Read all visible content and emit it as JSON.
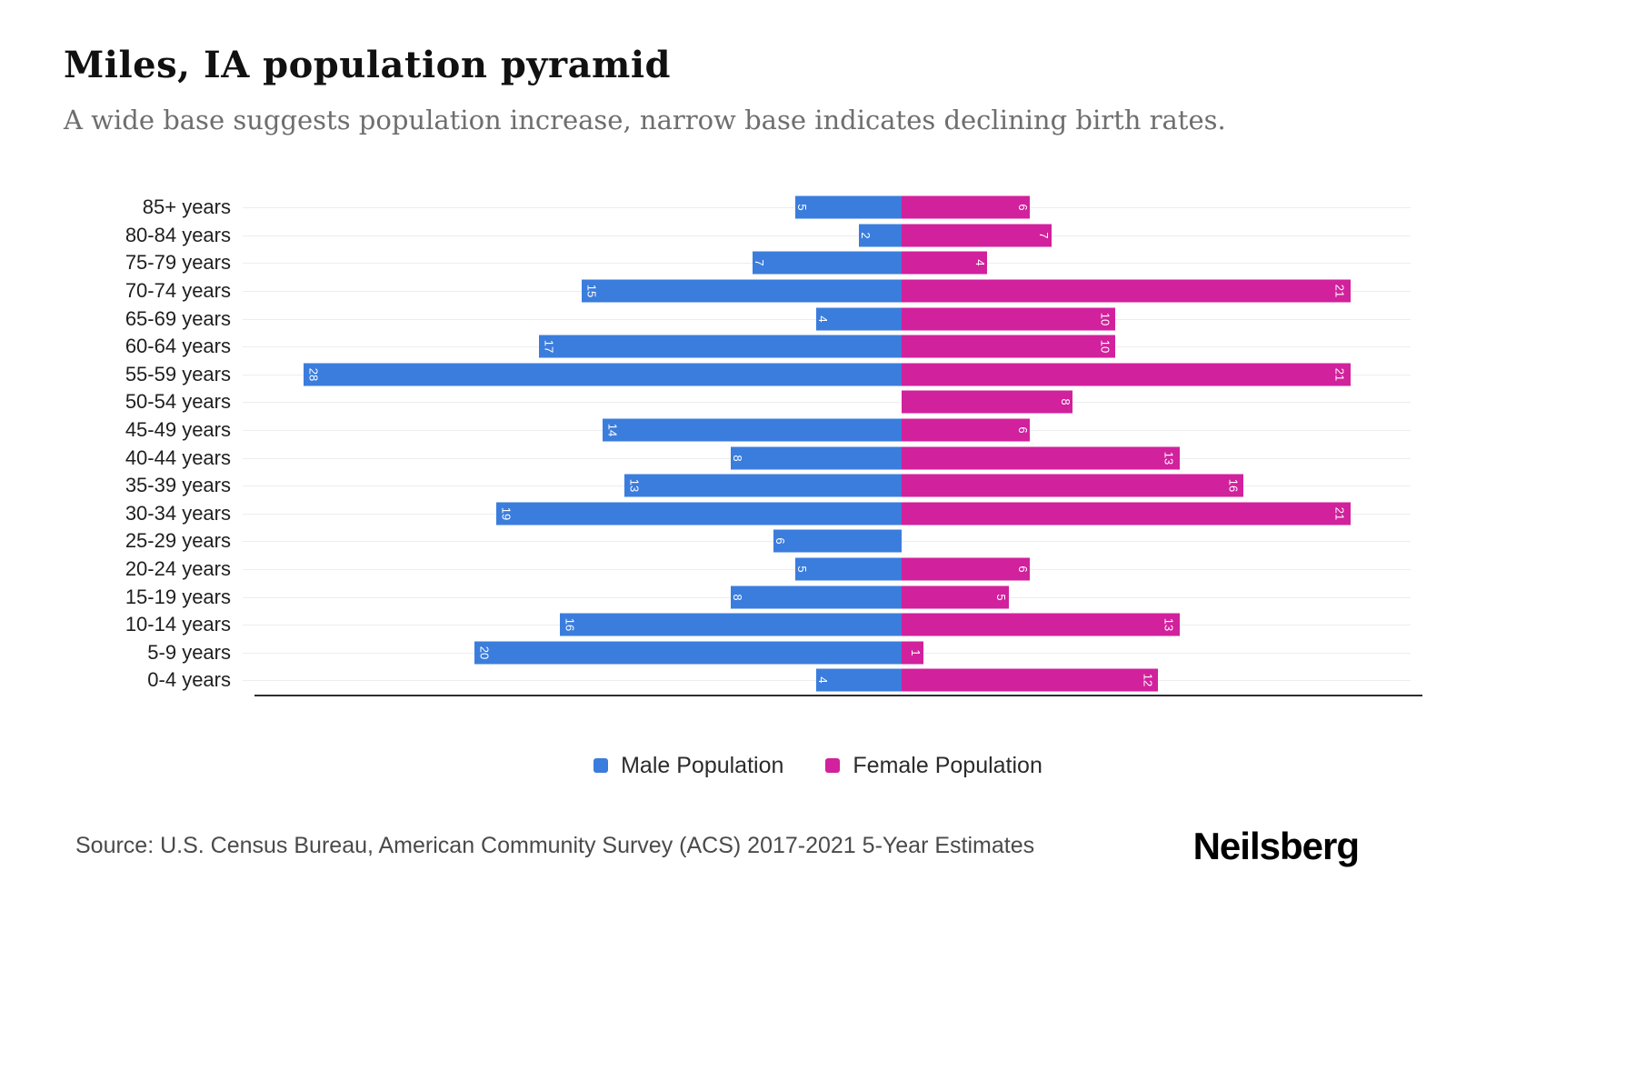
{
  "header": {
    "title": "Miles, IA population pyramid",
    "subtitle": "A wide base suggests population increase, narrow base indicates declining birth rates."
  },
  "chart_data": {
    "type": "bar",
    "variant": "population-pyramid",
    "categories": [
      "85+ years",
      "80-84 years",
      "75-79 years",
      "70-74 years",
      "65-69 years",
      "60-64 years",
      "55-59 years",
      "50-54 years",
      "45-49 years",
      "40-44 years",
      "35-39 years",
      "30-34 years",
      "25-29 years",
      "20-24 years",
      "15-19 years",
      "10-14 years",
      "5-9 years",
      "0-4 years"
    ],
    "series": [
      {
        "name": "Male Population",
        "color": "#3b7ddd",
        "direction": "left",
        "values": [
          5,
          2,
          7,
          15,
          4,
          17,
          28,
          0,
          14,
          8,
          13,
          19,
          6,
          5,
          8,
          16,
          20,
          4
        ]
      },
      {
        "name": "Female Population",
        "color": "#d1219c",
        "direction": "right",
        "values": [
          6,
          7,
          4,
          21,
          10,
          10,
          21,
          8,
          6,
          13,
          16,
          21,
          0,
          6,
          5,
          13,
          1,
          12
        ]
      }
    ],
    "axis_max_each_side": 28,
    "grid": "horizontal-light",
    "value_labels": "rotated-90-white-at-bar-end",
    "legend_position": "bottom-center"
  },
  "legend": {
    "male": "Male Population",
    "female": "Female Population"
  },
  "footer": {
    "source": "Source: U.S. Census Bureau, American Community Survey (ACS) 2017-2021 5-Year Estimates",
    "brand": "Neilsberg"
  }
}
